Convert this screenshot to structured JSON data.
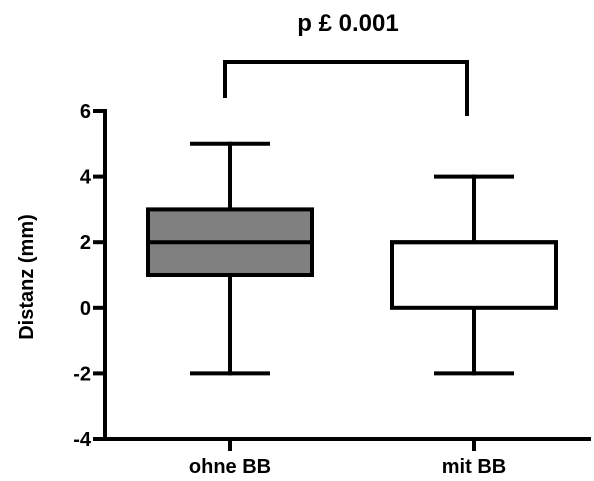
{
  "chart_data": {
    "type": "box",
    "title": "",
    "ylabel": "Distanz (mm)",
    "xlabel": "",
    "ylim": [
      -4,
      6
    ],
    "yticks": [
      -4,
      -2,
      0,
      2,
      4,
      6
    ],
    "ytick_labels": [
      "-4",
      "-2",
      "0",
      "2",
      "4",
      "6"
    ],
    "categories": [
      "ohne BB",
      "mit BB"
    ],
    "boxes": [
      {
        "category": "ohne BB",
        "min": -2,
        "q1": 1,
        "median": 2,
        "q3": 3,
        "max": 5,
        "fill": "#808080"
      },
      {
        "category": "mit BB",
        "min": -2,
        "q1": 0,
        "median": 2,
        "q3": 2,
        "max": 4,
        "fill": "#ffffff"
      }
    ],
    "annotation": {
      "text": "p £ 0.001",
      "between": [
        "ohne BB",
        "mit BB"
      ]
    }
  }
}
